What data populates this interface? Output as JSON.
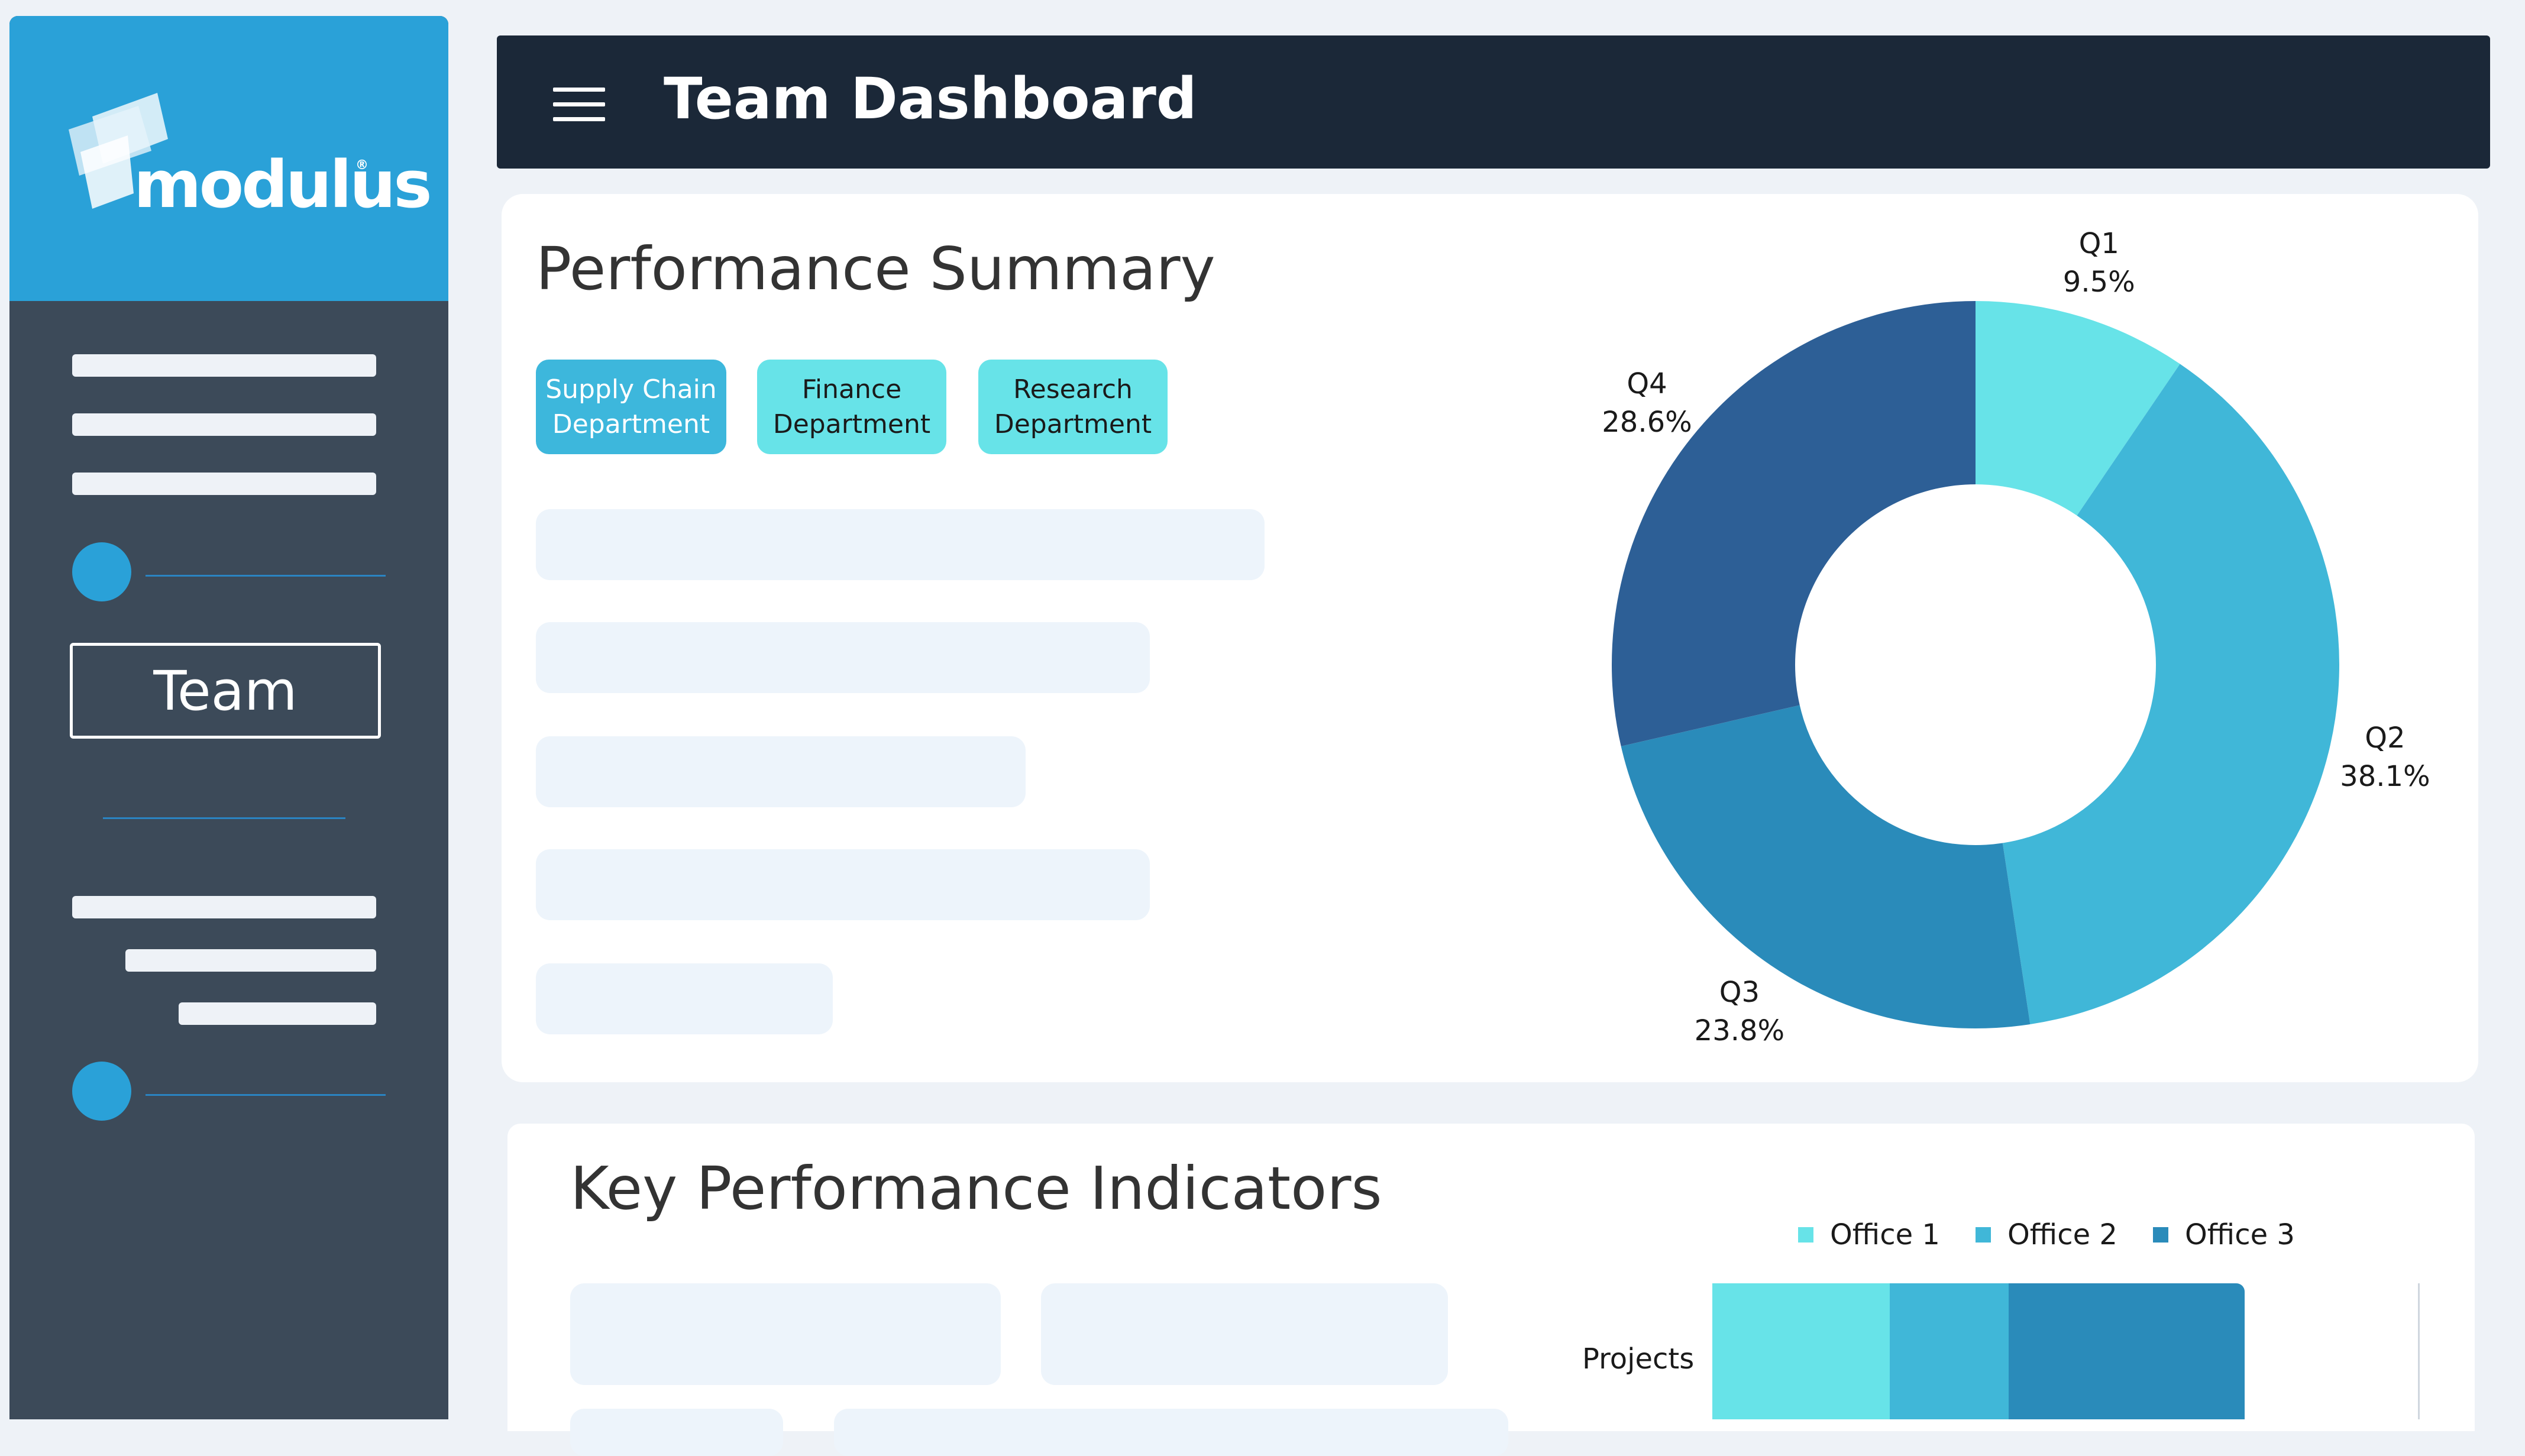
{
  "brand": {
    "logo_text": "modulus",
    "logo_mark": "®",
    "sidebar_top_color": "#2aa1d8",
    "sidebar_color": "#3c4a59"
  },
  "sidebar": {
    "team_label": "Team"
  },
  "header": {
    "menu_icon": "hamburger-menu-icon",
    "title": "Team Dashboard"
  },
  "performance": {
    "title": "Performance Summary",
    "departments": [
      {
        "label_line1": "Supply Chain",
        "label_line2": "Department",
        "active": true
      },
      {
        "label_line1": "Finance",
        "label_line2": "Department",
        "active": false
      },
      {
        "label_line1": "Research",
        "label_line2": "Department",
        "active": false
      }
    ]
  },
  "kpi": {
    "title": "Key Performance Indicators"
  },
  "chart_data": [
    {
      "type": "pie",
      "donut": true,
      "labels": [
        "Q1",
        "Q2",
        "Q3",
        "Q4"
      ],
      "values": [
        9.5,
        38.1,
        23.8,
        28.6
      ],
      "value_labels": [
        "9.5%",
        "38.1%",
        "23.8%",
        "28.6%"
      ],
      "colors": [
        "#67e3e8",
        "#40b7d8",
        "#2a8bba",
        "#2d5f96"
      ]
    },
    {
      "type": "bar",
      "orientation": "horizontal",
      "stacked": true,
      "categories": [
        "Projects"
      ],
      "series": [
        {
          "name": "Office 1",
          "values": [
            100
          ],
          "color": "#67e3e8"
        },
        {
          "name": "Office 2",
          "values": [
            67
          ],
          "color": "#40b7d8"
        },
        {
          "name": "Office 3",
          "values": [
            133
          ],
          "color": "#2a8bba"
        }
      ],
      "legend": "top"
    }
  ]
}
